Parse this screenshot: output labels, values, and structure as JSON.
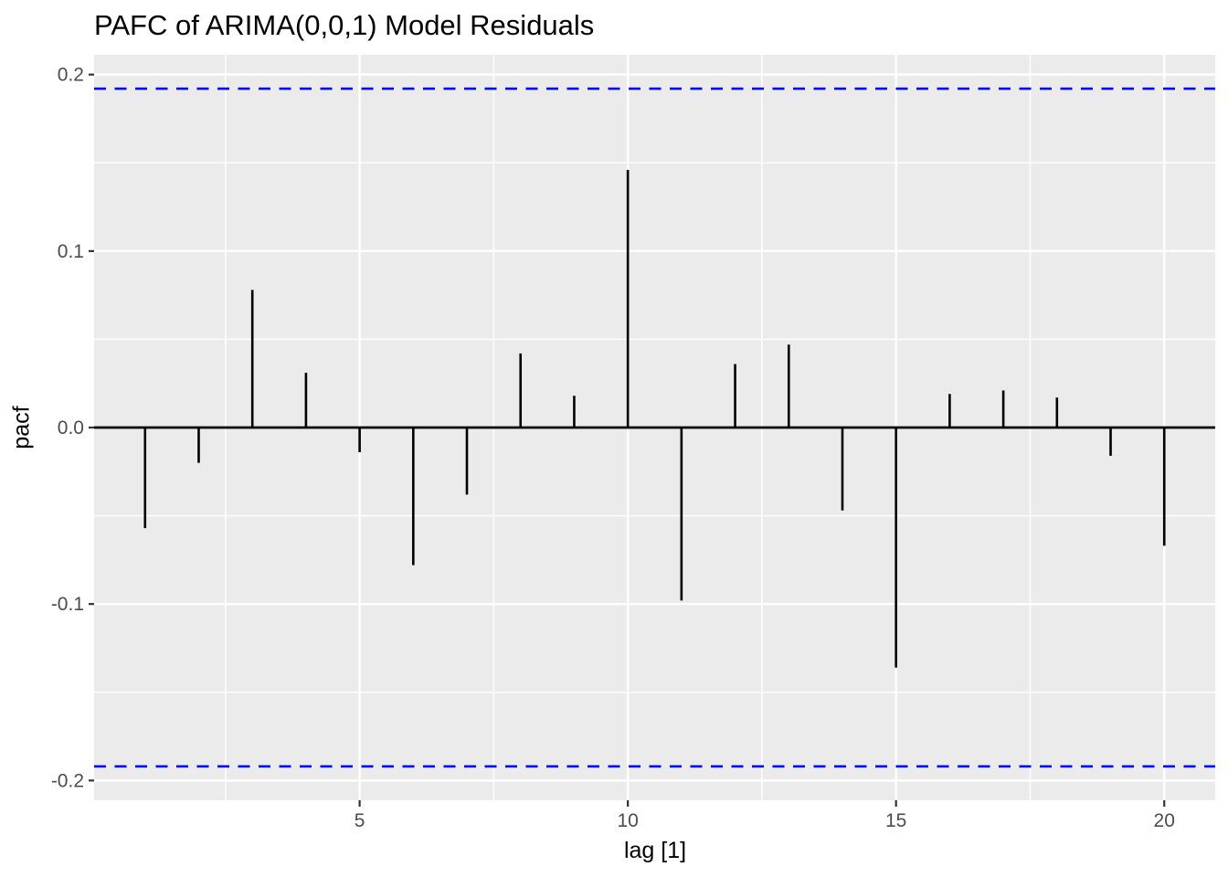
{
  "chart_data": {
    "type": "bar",
    "subtype": "stem-pacf",
    "title": "PAFC of ARIMA(0,0,1) Model Residuals",
    "xlabel": "lag [1]",
    "ylabel": "pacf",
    "x": [
      1,
      2,
      3,
      4,
      5,
      6,
      7,
      8,
      9,
      10,
      11,
      12,
      13,
      14,
      15,
      16,
      17,
      18,
      19,
      20
    ],
    "values": [
      -0.057,
      -0.02,
      0.078,
      0.031,
      -0.014,
      -0.078,
      -0.038,
      0.042,
      0.018,
      0.146,
      -0.098,
      0.036,
      0.047,
      -0.047,
      -0.136,
      0.019,
      0.021,
      0.017,
      -0.016,
      -0.067
    ],
    "confidence_bounds": {
      "upper": 0.192,
      "lower": -0.192,
      "line_style": "dashed"
    },
    "baseline": 0,
    "x_ticks": [
      "5",
      "10",
      "15",
      "20"
    ],
    "x_tick_values": [
      5,
      10,
      15,
      20
    ],
    "x_minor_gridlines": [
      2.5,
      7.5,
      12.5,
      17.5
    ],
    "y_ticks": [
      "0.2",
      "0.1",
      "0.0",
      "-0.1",
      "-0.2"
    ],
    "y_tick_values": [
      0.2,
      0.1,
      0.0,
      -0.1,
      -0.2
    ],
    "y_minor_gridlines": [
      0.15,
      0.05,
      -0.05,
      -0.15
    ],
    "xlim": [
      0.05,
      20.95
    ],
    "ylim": [
      -0.2112,
      0.2112
    ],
    "grid": true,
    "legend": false
  },
  "style": {
    "panel_background": "#EBEBEB",
    "gridline_color": "#FFFFFF",
    "stem_color": "#000000",
    "zero_line_color": "#000000",
    "ci_line_color": "#0505EE",
    "axis_text_color": "#4D4D4D",
    "tick_mark_color": "#333333",
    "title_color": "#000000",
    "page_background": "#FFFFFF"
  }
}
